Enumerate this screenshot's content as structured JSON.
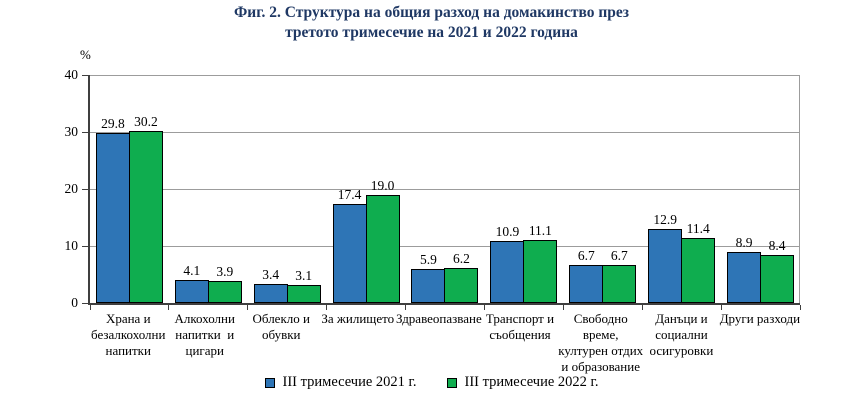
{
  "figure": {
    "title_line1": "Фиг. 2. Структура на общия разход на домакинство през",
    "title_line2": "третото тримесечие на 2021 и 2022 година"
  },
  "colors": {
    "title": "#1F3864",
    "series_2021": "#2E75B6",
    "series_2022": "#0FAD4F",
    "grid": "#9C9C9C",
    "axis": "#3F3F3F",
    "bar_border": "#000000"
  },
  "chart_data": {
    "type": "bar",
    "title": "Фиг. 2. Структура на общия разход на домакинство през третото тримесечие на 2021 и 2022 година",
    "ylabel": "%",
    "xlabel": "",
    "ylim": [
      0,
      40
    ],
    "yticks": [
      0,
      10,
      20,
      30,
      40
    ],
    "grid": true,
    "legend_position": "bottom",
    "categories": [
      "Храна и\nбезалкохолни\nнапитки",
      "Алкохолни\nнапитки  и\nцигари",
      "Облекло и\nобувки",
      "За жилището",
      "Здравеопазване",
      "Транспорт и\nсъобщения",
      "Свободно\nвреме,\nкултурен отдих\nи образование",
      "Данъци и\nсоциални\nосигуровки",
      "Други разходи"
    ],
    "series": [
      {
        "name": "III тримесечие 2021 г.",
        "color": "#2E75B6",
        "values": [
          29.8,
          4.1,
          3.4,
          17.4,
          5.9,
          10.9,
          6.7,
          12.9,
          8.9
        ],
        "labels": [
          "29.8",
          "4.1",
          "3.4",
          "17.4",
          "5.9",
          "10.9",
          "6.7",
          "12.9",
          "8.9"
        ]
      },
      {
        "name": "III тримесечие 2022 г.",
        "color": "#0FAD4F",
        "values": [
          30.2,
          3.9,
          3.1,
          19.0,
          6.2,
          11.1,
          6.7,
          11.4,
          8.4
        ],
        "labels": [
          "30.2",
          "3.9",
          "3.1",
          "19.0",
          "6.2",
          "11.1",
          "6.7",
          "11.4",
          "8.4"
        ]
      }
    ]
  }
}
